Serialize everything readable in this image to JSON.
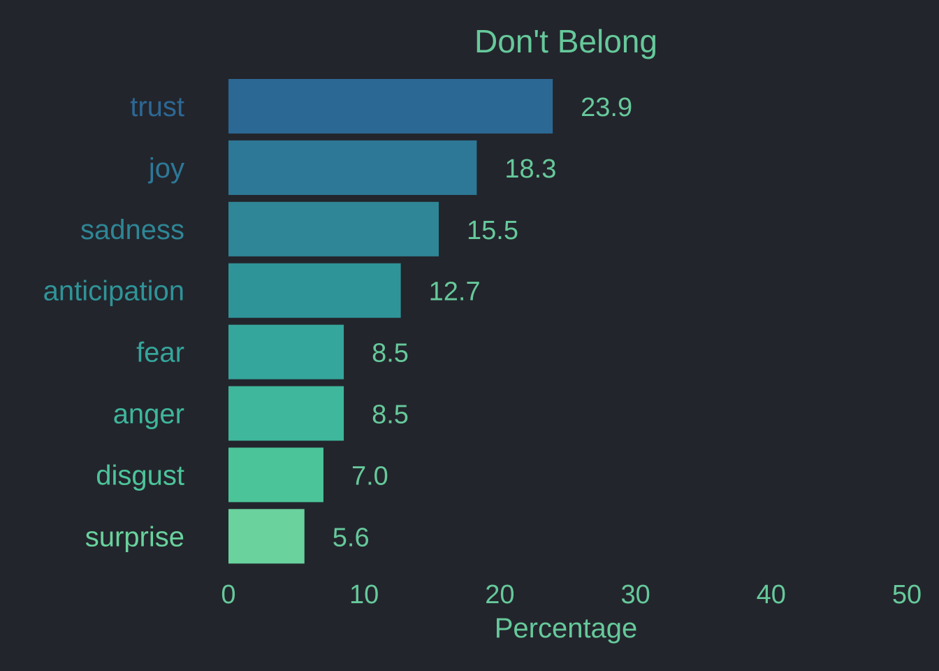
{
  "background": "#23252c",
  "text_color": "#66c99b",
  "chart_data": {
    "type": "bar",
    "orientation": "horizontal",
    "title": "Don't Belong",
    "xlabel": "Percentage",
    "ylabel": "",
    "categories": [
      "trust",
      "joy",
      "sadness",
      "anticipation",
      "fear",
      "anger",
      "disgust",
      "surprise"
    ],
    "values": [
      23.9,
      18.3,
      15.5,
      12.7,
      8.5,
      8.5,
      7.0,
      5.6
    ],
    "value_labels": [
      "23.9",
      "18.3",
      "15.5",
      "12.7",
      "8.5",
      "8.5",
      "7.0",
      "5.6"
    ],
    "bar_colors": [
      "#2c6894",
      "#2d7897",
      "#2e8696",
      "#2f9498",
      "#35a69c",
      "#3eb79c",
      "#4cc49a",
      "#69d29d"
    ],
    "xlim": [
      0,
      50
    ],
    "xticks": [
      0,
      10,
      20,
      30,
      40,
      50
    ],
    "xtick_labels": [
      "0",
      "10",
      "20",
      "30",
      "40",
      "50"
    ],
    "grid": false,
    "legend": "none"
  }
}
